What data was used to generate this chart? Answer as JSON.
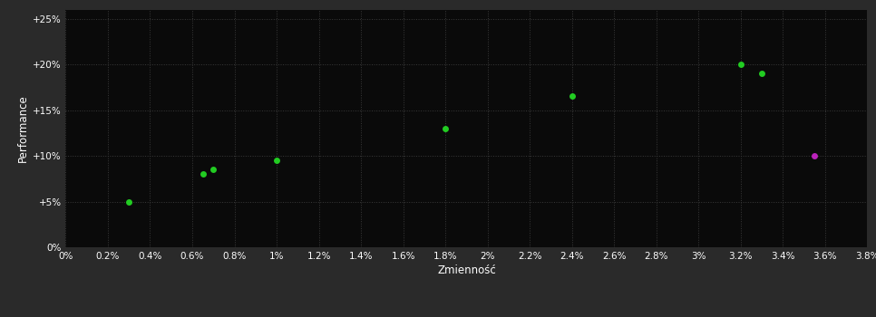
{
  "background_color": "#2a2a2a",
  "plot_bg_color": "#0a0a0a",
  "grid_color": "#3a3a3a",
  "text_color": "#ffffff",
  "green_points": [
    [
      0.003,
      0.05
    ],
    [
      0.0065,
      0.08
    ],
    [
      0.007,
      0.085
    ],
    [
      0.01,
      0.095
    ],
    [
      0.018,
      0.13
    ],
    [
      0.024,
      0.165
    ],
    [
      0.032,
      0.2
    ],
    [
      0.033,
      0.19
    ]
  ],
  "magenta_points": [
    [
      0.0355,
      0.1
    ]
  ],
  "green_color": "#22cc22",
  "magenta_color": "#bb22bb",
  "xlabel": "Zmienność",
  "ylabel": "Performance",
  "xlim": [
    0.0,
    0.038
  ],
  "ylim": [
    0.0,
    0.26
  ],
  "xticks": [
    0.0,
    0.002,
    0.004,
    0.006,
    0.008,
    0.01,
    0.012,
    0.014,
    0.016,
    0.018,
    0.02,
    0.022,
    0.024,
    0.026,
    0.028,
    0.03,
    0.032,
    0.034,
    0.036,
    0.038
  ],
  "yticks": [
    0.0,
    0.05,
    0.1,
    0.15,
    0.2,
    0.25
  ],
  "marker_size": 5
}
